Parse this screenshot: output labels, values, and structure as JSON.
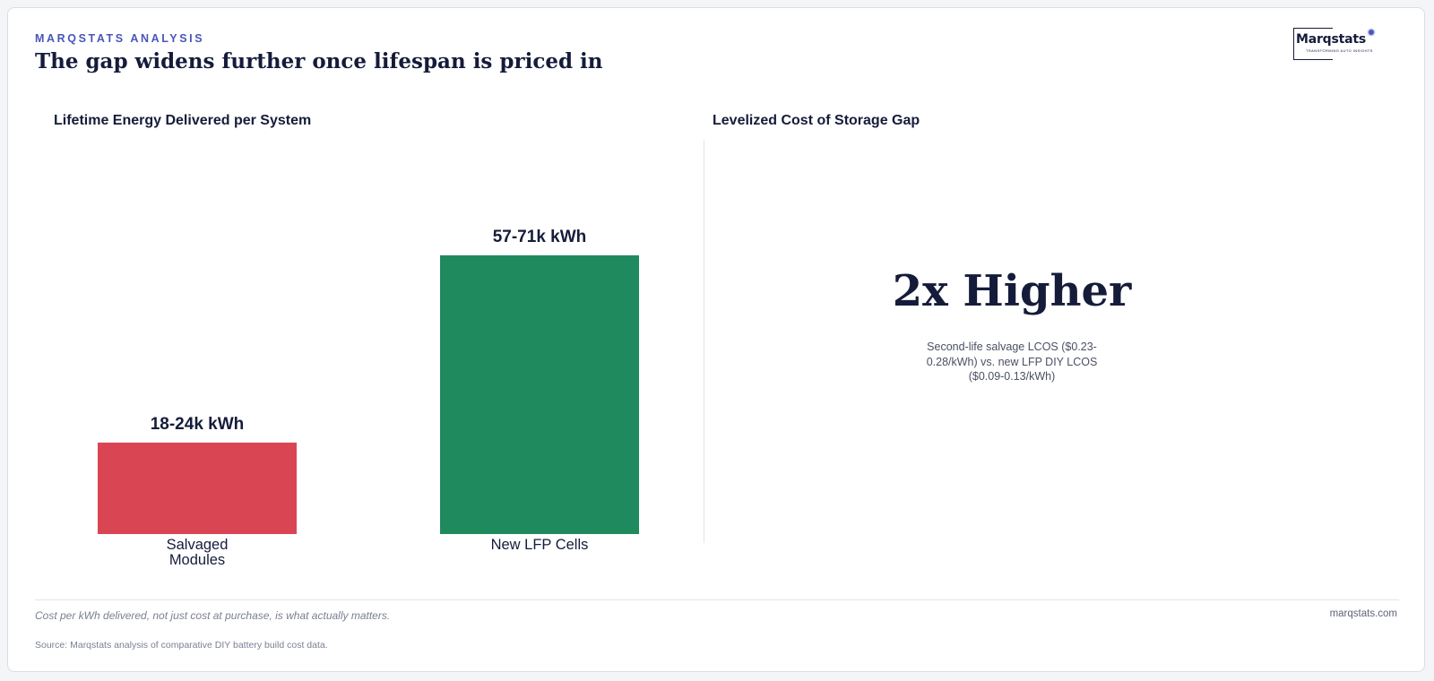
{
  "header": {
    "kicker": "MARQSTATS ANALYSIS",
    "title": "The gap widens further once lifespan is priced in"
  },
  "logo": {
    "wordmark": "Marqstats",
    "tagline": "TRANSFORMING AUTO INSIGHTS"
  },
  "colors": {
    "accent": "#4a56b8",
    "salvaged": "#d94552",
    "new_lfp": "#208a5f",
    "ink": "#151c3a"
  },
  "left_panel": {
    "title": "Lifetime Energy Delivered per System"
  },
  "right_panel": {
    "title": "Levelized Cost of Storage Gap",
    "big_stat": "2x Higher",
    "description": "Second-life salvage LCOS ($0.23-0.28/kWh) vs. new LFP DIY LCOS ($0.09-0.13/kWh)"
  },
  "chart_data": {
    "type": "bar",
    "title": "Lifetime Energy Delivered per System",
    "categories": [
      "Salvaged Modules",
      "New LFP Cells"
    ],
    "values": [
      21,
      64
    ],
    "ranges": [
      [
        18,
        24
      ],
      [
        57,
        71
      ]
    ],
    "unit": "k kWh",
    "data_labels": [
      "18-24k kWh",
      "57-71k kWh"
    ],
    "bar_colors": [
      "#d94552",
      "#208a5f"
    ],
    "ylim": [
      0,
      72
    ],
    "grid": false,
    "legend": "none"
  },
  "footer": {
    "takeaway": "Cost per kWh delivered, not just cost at purchase, is what actually matters.",
    "site": "marqstats.com",
    "source": "Source: Marqstats analysis of comparative DIY battery build cost data."
  }
}
